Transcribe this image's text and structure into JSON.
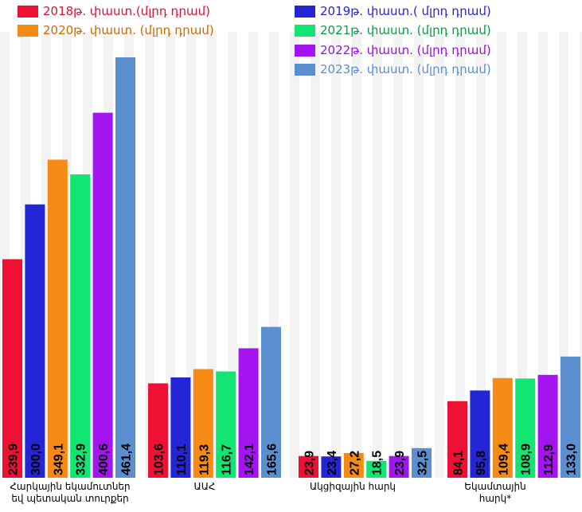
{
  "chart_data": {
    "type": "bar",
    "categories": [
      "Հարկային եկամուտներ\nեվ պետական տուրքեր",
      "ԱԱՀ",
      "Ակցիզային հարկ",
      "Եկամտային\nհարկ*"
    ],
    "series": [
      {
        "name": "2018թ. փաստ.(մլրդ դրամ)",
        "color": "#ee1133",
        "values": [
          239.9,
          103.6,
          23.9,
          84.1
        ],
        "labels": [
          "239,9",
          "103,6",
          "23,9",
          "84,1"
        ]
      },
      {
        "name": "2019թ. փաստ.( մլրդ դրամ)",
        "color": "#2525d8",
        "values": [
          300.0,
          110.1,
          23.4,
          95.8
        ],
        "labels": [
          "300,0",
          "110,1",
          "23,4",
          "95,8"
        ]
      },
      {
        "name": "2020թ. փաստ. (մլրդ դրամ)",
        "color": "#f58a15",
        "values": [
          349.1,
          119.3,
          27.2,
          109.4
        ],
        "labels": [
          "349,1",
          "119,3",
          "27,2",
          "109,4"
        ]
      },
      {
        "name": "2021թ. փաստ. (մլրդ դրամ)",
        "color": "#12e572",
        "values": [
          332.9,
          116.7,
          18.5,
          108.9
        ],
        "labels": [
          "332,9",
          "116,7",
          "18,5",
          "108,9"
        ]
      },
      {
        "name": "2022թ. փաստ. (մլրդ դրամ)",
        "color": "#a414f0",
        "values": [
          400.6,
          142.1,
          23.9,
          112.9
        ],
        "labels": [
          "400,6",
          "142,1",
          "23,9",
          "112,9"
        ]
      },
      {
        "name": "2023թ. փաստ. (մլրդ դրամ)",
        "color": "#5b8fcf",
        "values": [
          461.4,
          165.6,
          32.5,
          133.0
        ],
        "labels": [
          "461,4",
          "165,6",
          "32,5",
          "133,0"
        ]
      }
    ],
    "legend_text_colors": [
      "#dd1133",
      "#2525d8",
      "#cc6a00",
      "#0a9a4a",
      "#9a12e0",
      "#5b8fcf"
    ],
    "ylim": [
      0,
      461.4
    ],
    "grid": false,
    "legend": "top",
    "value_label_orientation": "vertical",
    "value_label_color": "#000000"
  }
}
